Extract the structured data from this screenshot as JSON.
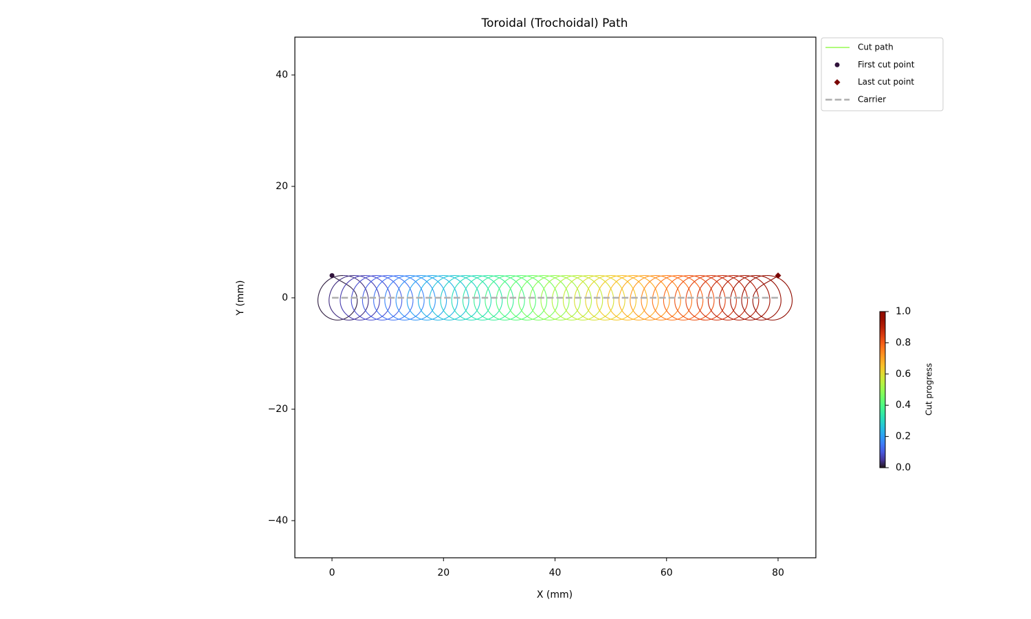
{
  "chart_data": {
    "type": "line",
    "title": "Toroidal (Trochoidal) Path",
    "xlabel": "X (mm)",
    "ylabel": "Y (mm)",
    "xlim": [
      -6.66,
      86.78
    ],
    "ylim": [
      -46.67,
      46.79
    ],
    "xticks": [
      0,
      20,
      40,
      60,
      80
    ],
    "yticks": [
      {
        "value": -40,
        "label": "−40"
      },
      {
        "value": -20,
        "label": "−20"
      },
      0,
      20,
      40
    ],
    "legend": "outside upper right",
    "series": [
      {
        "name": "Cut path",
        "colormap": "turbo",
        "x": [
          0,
          4.5,
          1,
          -2.5,
          2,
          6.5,
          3,
          -0.5,
          4,
          8.5,
          5,
          1.5,
          6,
          10.5,
          7,
          3.5,
          8,
          12.5,
          9,
          5.5,
          10,
          14.5,
          11,
          7.5,
          12,
          16.5,
          13,
          9.5,
          14,
          18.5,
          15,
          11.5,
          16,
          20.5,
          17,
          13.5,
          18,
          22.5,
          19,
          15.5,
          20,
          24.5,
          21,
          17.5,
          22,
          26.5,
          23,
          19.5,
          24,
          28.5,
          25,
          21.5,
          26,
          30.5,
          27,
          23.5,
          28,
          32.5,
          29,
          25.5,
          30,
          34.5,
          31,
          27.5,
          32,
          36.5,
          33,
          29.5,
          34,
          38.5,
          35,
          31.5,
          36,
          40.5,
          37,
          33.5,
          38,
          42.5,
          39,
          35.5,
          40,
          44.5,
          41,
          37.5,
          42,
          46.5,
          43,
          39.5,
          44,
          48.5,
          45,
          41.5,
          46,
          50.5,
          47,
          43.5,
          48,
          52.5,
          49,
          45.5,
          50,
          54.5,
          51,
          47.5,
          52,
          56.5,
          53,
          49.5,
          54,
          58.5,
          55,
          51.5,
          56,
          60.5,
          57,
          53.5,
          58,
          62.5,
          59,
          55.5,
          60,
          64.5,
          61,
          57.5,
          62,
          66.5,
          63,
          59.5,
          64,
          68.5,
          65,
          61.5,
          66,
          70.5,
          67,
          63.5,
          68,
          72.5,
          69,
          65.5,
          70,
          74.5,
          71,
          67.5,
          72,
          76.5,
          73,
          69.5,
          74,
          78.5,
          75,
          71.5,
          76,
          80.5,
          77,
          73.5,
          78,
          82.5,
          79,
          75.5,
          80
        ],
        "y": [
          4,
          0,
          -4,
          0,
          4,
          0,
          -4,
          0,
          4,
          0,
          -4,
          0,
          4,
          0,
          -4,
          0,
          4,
          0,
          -4,
          0,
          4,
          0,
          -4,
          0,
          4,
          0,
          -4,
          0,
          4,
          0,
          -4,
          0,
          4,
          0,
          -4,
          0,
          4,
          0,
          -4,
          0,
          4,
          0,
          -4,
          0,
          4,
          0,
          -4,
          0,
          4,
          0,
          -4,
          0,
          4,
          0,
          -4,
          0,
          4,
          0,
          -4,
          0,
          4,
          0,
          -4,
          0,
          4,
          0,
          -4,
          0,
          4,
          0,
          -4,
          0,
          4,
          0,
          -4,
          0,
          4,
          0,
          -4,
          0,
          4,
          0,
          -4,
          0,
          4,
          0,
          -4,
          0,
          4,
          0,
          -4,
          0,
          4,
          0,
          -4,
          0,
          4,
          0,
          -4,
          0,
          4,
          0,
          -4,
          0,
          4,
          0,
          -4,
          0,
          4,
          0,
          -4,
          0,
          4,
          0,
          -4,
          0,
          4,
          0,
          -4,
          0,
          4,
          0,
          -4,
          0,
          4,
          0,
          -4,
          0,
          4,
          0,
          -4,
          0,
          4,
          0,
          -4,
          0,
          4,
          0,
          -4,
          0,
          4,
          0,
          -4,
          0,
          4,
          0,
          -4,
          0,
          4,
          0,
          -4,
          0,
          4,
          0,
          -4,
          0,
          4,
          0,
          -4,
          0,
          4
        ]
      },
      {
        "name": "First cut point",
        "marker": "circle",
        "color": "#30123b",
        "x": [
          0
        ],
        "y": [
          4
        ]
      },
      {
        "name": "Last cut point",
        "marker": "diamond",
        "color": "#7a0403",
        "x": [
          80
        ],
        "y": [
          4
        ]
      },
      {
        "name": "Carrier",
        "dashed": true,
        "color": "#b0b0b0",
        "x": [
          0,
          80
        ],
        "y": [
          0,
          0
        ]
      }
    ],
    "colorbar": {
      "label": "Cut progress",
      "colormap": "turbo",
      "lim": [
        0,
        1
      ],
      "ticks": [
        {
          "value": 0,
          "label": "0.0"
        },
        {
          "value": 0.2,
          "label": "0.2"
        },
        {
          "value": 0.4,
          "label": "0.4"
        },
        {
          "value": 0.6,
          "label": "0.6"
        },
        {
          "value": 0.8,
          "label": "0.8"
        },
        {
          "value": 1,
          "label": "1.0"
        }
      ]
    }
  }
}
